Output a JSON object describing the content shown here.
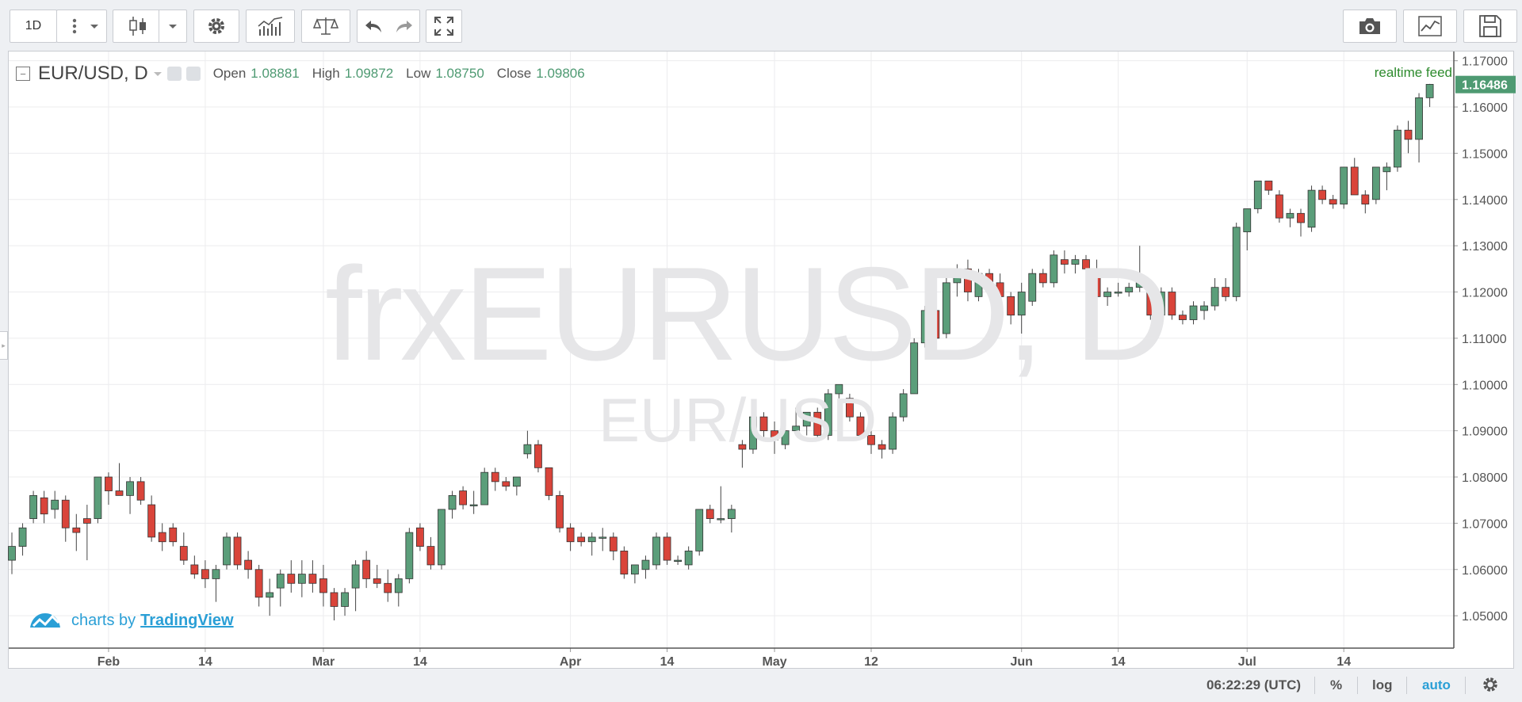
{
  "toolbar": {
    "interval_label": "1D",
    "icons": [
      "more-icon",
      "candles-icon",
      "chevron-down-icon",
      "gear-icon",
      "indicators-icon",
      "compare-icon",
      "undo-icon",
      "redo-icon",
      "fullscreen-icon",
      "camera-icon",
      "chart-icon",
      "save-icon"
    ]
  },
  "legend": {
    "symbol": "EUR/USD, D",
    "open_label": "Open",
    "open_value": "1.08881",
    "high_label": "High",
    "high_value": "1.09872",
    "low_label": "Low",
    "low_value": "1.08750",
    "close_label": "Close",
    "close_value": "1.09806"
  },
  "realtime_feed": "realtime feed",
  "watermark": {
    "main": "frxEURUSD, D",
    "sub": "EUR/USD"
  },
  "branding": {
    "prefix": "charts by",
    "link": "TradingView"
  },
  "statusbar": {
    "time": "06:22:29 (UTC)",
    "percent": "%",
    "log": "log",
    "auto": "auto"
  },
  "colors": {
    "up": "#5b9e7a",
    "down": "#d9443a",
    "accent": "#2a9fd6",
    "last_price_bg": "#4e9a72"
  },
  "chart_data": {
    "type": "candlestick",
    "y_ticks": [
      "1.17000",
      "1.16000",
      "1.15000",
      "1.14000",
      "1.13000",
      "1.12000",
      "1.11000",
      "1.10000",
      "1.09000",
      "1.08000",
      "1.07000",
      "1.06000",
      "1.05000"
    ],
    "ylim": [
      1.043,
      1.172
    ],
    "last_price": "1.16486",
    "x_ticks": [
      {
        "label": "Feb",
        "idx": 9
      },
      {
        "label": "14",
        "idx": 18
      },
      {
        "label": "Mar",
        "idx": 29
      },
      {
        "label": "14",
        "idx": 38
      },
      {
        "label": "Apr",
        "idx": 52
      },
      {
        "label": "14",
        "idx": 61
      },
      {
        "label": "May",
        "idx": 71
      },
      {
        "label": "12",
        "idx": 80
      },
      {
        "label": "Jun",
        "idx": 94
      },
      {
        "label": "14",
        "idx": 103
      },
      {
        "label": "Jul",
        "idx": 115
      },
      {
        "label": "14",
        "idx": 124
      }
    ],
    "candles": [
      [
        1.062,
        1.068,
        1.059,
        1.065
      ],
      [
        1.065,
        1.07,
        1.063,
        1.069
      ],
      [
        1.071,
        1.077,
        1.07,
        1.076
      ],
      [
        1.0755,
        1.077,
        1.07,
        1.072
      ],
      [
        1.073,
        1.077,
        1.071,
        1.075
      ],
      [
        1.075,
        1.076,
        1.066,
        1.069
      ],
      [
        1.069,
        1.072,
        1.064,
        1.068
      ],
      [
        1.071,
        1.074,
        1.062,
        1.07
      ],
      [
        1.071,
        1.08,
        1.07,
        1.08
      ],
      [
        1.08,
        1.081,
        1.074,
        1.077
      ],
      [
        1.077,
        1.083,
        1.076,
        1.076
      ],
      [
        1.076,
        1.08,
        1.072,
        1.079
      ],
      [
        1.079,
        1.08,
        1.074,
        1.075
      ],
      [
        1.074,
        1.076,
        1.066,
        1.067
      ],
      [
        1.068,
        1.07,
        1.064,
        1.066
      ],
      [
        1.069,
        1.07,
        1.065,
        1.066
      ],
      [
        1.065,
        1.068,
        1.061,
        1.062
      ],
      [
        1.061,
        1.063,
        1.058,
        1.059
      ],
      [
        1.06,
        1.062,
        1.056,
        1.058
      ],
      [
        1.058,
        1.061,
        1.053,
        1.06
      ],
      [
        1.061,
        1.068,
        1.06,
        1.067
      ],
      [
        1.067,
        1.068,
        1.06,
        1.061
      ],
      [
        1.062,
        1.064,
        1.058,
        1.06
      ],
      [
        1.06,
        1.061,
        1.052,
        1.054
      ],
      [
        1.054,
        1.058,
        1.05,
        1.055
      ],
      [
        1.056,
        1.06,
        1.052,
        1.059
      ],
      [
        1.059,
        1.062,
        1.055,
        1.057
      ],
      [
        1.057,
        1.062,
        1.054,
        1.059
      ],
      [
        1.059,
        1.062,
        1.055,
        1.057
      ],
      [
        1.058,
        1.061,
        1.052,
        1.055
      ],
      [
        1.055,
        1.056,
        1.049,
        1.052
      ],
      [
        1.052,
        1.056,
        1.05,
        1.055
      ],
      [
        1.056,
        1.062,
        1.051,
        1.061
      ],
      [
        1.062,
        1.064,
        1.056,
        1.058
      ],
      [
        1.058,
        1.061,
        1.056,
        1.057
      ],
      [
        1.057,
        1.06,
        1.053,
        1.055
      ],
      [
        1.055,
        1.059,
        1.052,
        1.058
      ],
      [
        1.058,
        1.069,
        1.057,
        1.068
      ],
      [
        1.069,
        1.07,
        1.064,
        1.065
      ],
      [
        1.065,
        1.067,
        1.06,
        1.061
      ],
      [
        1.061,
        1.073,
        1.06,
        1.073
      ],
      [
        1.073,
        1.077,
        1.071,
        1.076
      ],
      [
        1.077,
        1.078,
        1.073,
        1.074
      ],
      [
        1.074,
        1.077,
        1.072,
        1.074
      ],
      [
        1.074,
        1.082,
        1.074,
        1.081
      ],
      [
        1.081,
        1.082,
        1.077,
        1.079
      ],
      [
        1.079,
        1.08,
        1.077,
        1.078
      ],
      [
        1.078,
        1.08,
        1.076,
        1.08
      ],
      [
        1.085,
        1.09,
        1.084,
        1.087
      ],
      [
        1.087,
        1.088,
        1.081,
        1.082
      ],
      [
        1.082,
        1.082,
        1.075,
        1.076
      ],
      [
        1.076,
        1.077,
        1.068,
        1.069
      ],
      [
        1.069,
        1.07,
        1.064,
        1.066
      ],
      [
        1.067,
        1.068,
        1.065,
        1.066
      ],
      [
        1.066,
        1.068,
        1.063,
        1.067
      ],
      [
        1.067,
        1.069,
        1.064,
        1.067
      ],
      [
        1.067,
        1.068,
        1.062,
        1.064
      ],
      [
        1.064,
        1.065,
        1.058,
        1.059
      ],
      [
        1.059,
        1.061,
        1.057,
        1.061
      ],
      [
        1.06,
        1.063,
        1.058,
        1.062
      ],
      [
        1.061,
        1.068,
        1.06,
        1.067
      ],
      [
        1.067,
        1.068,
        1.061,
        1.062
      ],
      [
        1.062,
        1.063,
        1.061,
        1.062
      ],
      [
        1.061,
        1.065,
        1.06,
        1.064
      ],
      [
        1.064,
        1.073,
        1.063,
        1.073
      ],
      [
        1.073,
        1.074,
        1.07,
        1.071
      ],
      [
        1.071,
        1.078,
        1.07,
        1.071
      ],
      [
        1.071,
        1.074,
        1.068,
        1.073
      ],
      [
        1.087,
        1.088,
        1.082,
        1.086
      ],
      [
        1.086,
        1.094,
        1.085,
        1.093
      ],
      [
        1.093,
        1.094,
        1.088,
        1.09
      ],
      [
        1.09,
        1.092,
        1.085,
        1.088
      ],
      [
        1.087,
        1.091,
        1.086,
        1.09
      ],
      [
        1.09,
        1.095,
        1.089,
        1.091
      ],
      [
        1.091,
        1.094,
        1.089,
        1.094
      ],
      [
        1.094,
        1.095,
        1.088,
        1.089
      ],
      [
        1.089,
        1.099,
        1.088,
        1.098
      ],
      [
        1.098,
        1.1,
        1.097,
        1.1
      ],
      [
        1.097,
        1.098,
        1.092,
        1.093
      ],
      [
        1.093,
        1.094,
        1.088,
        1.089
      ],
      [
        1.089,
        1.09,
        1.085,
        1.087
      ],
      [
        1.087,
        1.088,
        1.084,
        1.086
      ],
      [
        1.086,
        1.094,
        1.085,
        1.093
      ],
      [
        1.093,
        1.099,
        1.092,
        1.098
      ],
      [
        1.098,
        1.11,
        1.098,
        1.109
      ],
      [
        1.109,
        1.117,
        1.108,
        1.116
      ],
      [
        1.116,
        1.118,
        1.108,
        1.11
      ],
      [
        1.111,
        1.124,
        1.11,
        1.122
      ],
      [
        1.122,
        1.126,
        1.119,
        1.125
      ],
      [
        1.125,
        1.127,
        1.118,
        1.12
      ],
      [
        1.119,
        1.125,
        1.118,
        1.124
      ],
      [
        1.124,
        1.125,
        1.12,
        1.122
      ],
      [
        1.122,
        1.124,
        1.118,
        1.119
      ],
      [
        1.119,
        1.12,
        1.113,
        1.115
      ],
      [
        1.115,
        1.122,
        1.111,
        1.12
      ],
      [
        1.118,
        1.125,
        1.117,
        1.124
      ],
      [
        1.124,
        1.125,
        1.121,
        1.122
      ],
      [
        1.122,
        1.129,
        1.121,
        1.128
      ],
      [
        1.127,
        1.129,
        1.124,
        1.126
      ],
      [
        1.126,
        1.128,
        1.124,
        1.127
      ],
      [
        1.127,
        1.128,
        1.123,
        1.125
      ],
      [
        1.125,
        1.127,
        1.118,
        1.119
      ],
      [
        1.119,
        1.121,
        1.117,
        1.12
      ],
      [
        1.12,
        1.122,
        1.119,
        1.12
      ],
      [
        1.12,
        1.122,
        1.119,
        1.121
      ],
      [
        1.121,
        1.13,
        1.12,
        1.122
      ],
      [
        1.121,
        1.122,
        1.114,
        1.115
      ],
      [
        1.115,
        1.121,
        1.114,
        1.12
      ],
      [
        1.12,
        1.121,
        1.114,
        1.115
      ],
      [
        1.115,
        1.116,
        1.113,
        1.114
      ],
      [
        1.114,
        1.118,
        1.113,
        1.117
      ],
      [
        1.116,
        1.118,
        1.114,
        1.117
      ],
      [
        1.117,
        1.123,
        1.116,
        1.121
      ],
      [
        1.121,
        1.123,
        1.118,
        1.119
      ],
      [
        1.119,
        1.135,
        1.118,
        1.134
      ],
      [
        1.133,
        1.138,
        1.129,
        1.138
      ],
      [
        1.138,
        1.144,
        1.137,
        1.144
      ],
      [
        1.144,
        1.144,
        1.141,
        1.142
      ],
      [
        1.141,
        1.142,
        1.135,
        1.136
      ],
      [
        1.136,
        1.138,
        1.134,
        1.137
      ],
      [
        1.137,
        1.138,
        1.132,
        1.135
      ],
      [
        1.134,
        1.143,
        1.133,
        1.142
      ],
      [
        1.142,
        1.143,
        1.139,
        1.14
      ],
      [
        1.14,
        1.141,
        1.138,
        1.139
      ],
      [
        1.139,
        1.147,
        1.138,
        1.147
      ],
      [
        1.147,
        1.149,
        1.142,
        1.141
      ],
      [
        1.141,
        1.142,
        1.137,
        1.139
      ],
      [
        1.14,
        1.147,
        1.139,
        1.147
      ],
      [
        1.146,
        1.148,
        1.142,
        1.147
      ],
      [
        1.147,
        1.156,
        1.146,
        1.155
      ],
      [
        1.155,
        1.157,
        1.15,
        1.153
      ],
      [
        1.153,
        1.163,
        1.148,
        1.162
      ],
      [
        1.162,
        1.165,
        1.16,
        1.1649
      ]
    ]
  }
}
